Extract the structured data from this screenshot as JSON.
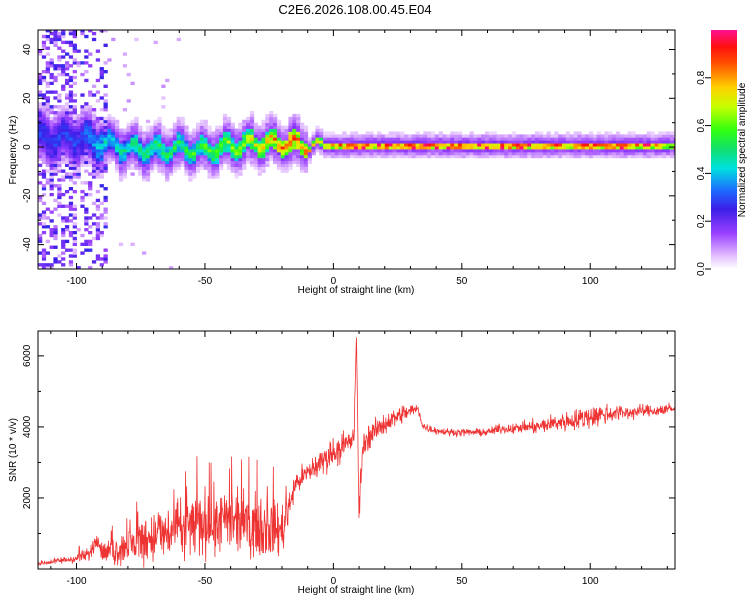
{
  "title": "C2E6.2026.108.00.45.E04",
  "chart_data": [
    {
      "type": "heatmap",
      "xlabel": "Height of straight line (km)",
      "ylabel": "Frequency (Hz)",
      "xlim": [
        -115,
        133
      ],
      "ylim": [
        -50,
        48
      ],
      "xticks": [
        -100,
        -50,
        0,
        50,
        100
      ],
      "yticks": [
        -40,
        -20,
        0,
        20,
        40
      ],
      "xtick_labels": [
        "-100",
        "-50",
        "0",
        "50",
        "100"
      ],
      "ytick_labels": [
        "-40",
        "-20",
        "0",
        "20",
        "40"
      ],
      "colorbar": {
        "label": "Normalized spectral amplitude",
        "range": [
          0,
          1
        ],
        "ticks": [
          0,
          0.2,
          0.4,
          0.6,
          0.8
        ],
        "tick_labels": [
          "0.0",
          "0.2",
          "0.4",
          "0.6",
          "0.8"
        ]
      },
      "ridge": {
        "x": [
          -100,
          -90,
          -80,
          -70,
          -60,
          -50,
          -40,
          -30,
          -20,
          -10,
          0,
          10,
          20,
          30,
          40,
          50,
          60,
          70,
          80,
          90,
          100,
          110,
          120,
          130
        ],
        "center_hz": [
          3,
          1,
          -1,
          -2,
          -1,
          -2,
          0,
          1,
          1,
          0,
          0,
          0,
          0,
          0,
          0,
          0,
          0,
          0,
          0,
          0,
          0,
          0,
          0,
          0
        ],
        "peak_amplitude": [
          0.3,
          0.45,
          0.5,
          0.55,
          0.55,
          0.6,
          0.65,
          0.75,
          0.9,
          0.85,
          0.9,
          0.95,
          0.97,
          0.97,
          0.97,
          0.97,
          0.96,
          0.96,
          0.95,
          0.95,
          0.95,
          0.95,
          0.9,
          0.85
        ]
      }
    },
    {
      "type": "line",
      "xlabel": "Height of straight line (km)",
      "ylabel": "SNR (10 * v/v)",
      "xlim": [
        -115,
        133
      ],
      "ylim": [
        0,
        6700
      ],
      "xticks": [
        -100,
        -50,
        0,
        50,
        100
      ],
      "yticks": [
        2000,
        4000,
        6000
      ],
      "xtick_labels": [
        "-100",
        "-50",
        "0",
        "50",
        "100"
      ],
      "ytick_labels": [
        "2000",
        "4000",
        "6000"
      ],
      "color": "#ee3333",
      "series": [
        {
          "x": [
            -115,
            -110,
            -105,
            -100,
            -95,
            -92,
            -90,
            -85,
            -80,
            -75,
            -70,
            -65,
            -60,
            -55,
            -50,
            -45,
            -40,
            -35,
            -30,
            -25,
            -20,
            -15,
            -10,
            -5,
            0,
            5,
            8,
            9,
            10,
            11,
            12,
            15,
            20,
            25,
            30,
            33,
            35,
            40,
            45,
            50,
            55,
            60,
            65,
            70,
            75,
            80,
            85,
            90,
            95,
            100,
            105,
            110,
            115,
            120,
            125,
            130,
            133
          ],
          "y": [
            150,
            200,
            250,
            300,
            400,
            900,
            450,
            500,
            650,
            800,
            900,
            1000,
            1100,
            1200,
            1300,
            1300,
            1300,
            1250,
            1200,
            1150,
            1100,
            2400,
            2700,
            3000,
            3300,
            3500,
            3700,
            6500,
            1500,
            3000,
            3600,
            3800,
            4100,
            4300,
            4450,
            4500,
            4000,
            3900,
            3850,
            3850,
            3850,
            3850,
            3950,
            3950,
            4000,
            4000,
            4100,
            4150,
            4200,
            4300,
            4350,
            4400,
            4400,
            4450,
            4450,
            4500,
            4500
          ],
          "noise": [
            100,
            120,
            150,
            200,
            300,
            400,
            400,
            600,
            800,
            1000,
            1100,
            1200,
            1300,
            1400,
            1400,
            1400,
            1300,
            1300,
            1200,
            1200,
            1100,
            500,
            500,
            600,
            600,
            600,
            500,
            300,
            800,
            600,
            500,
            500,
            450,
            400,
            350,
            200,
            200,
            150,
            150,
            150,
            150,
            150,
            200,
            200,
            250,
            300,
            350,
            400,
            450,
            500,
            450,
            350,
            300,
            250,
            250,
            250,
            250
          ]
        }
      ]
    }
  ]
}
